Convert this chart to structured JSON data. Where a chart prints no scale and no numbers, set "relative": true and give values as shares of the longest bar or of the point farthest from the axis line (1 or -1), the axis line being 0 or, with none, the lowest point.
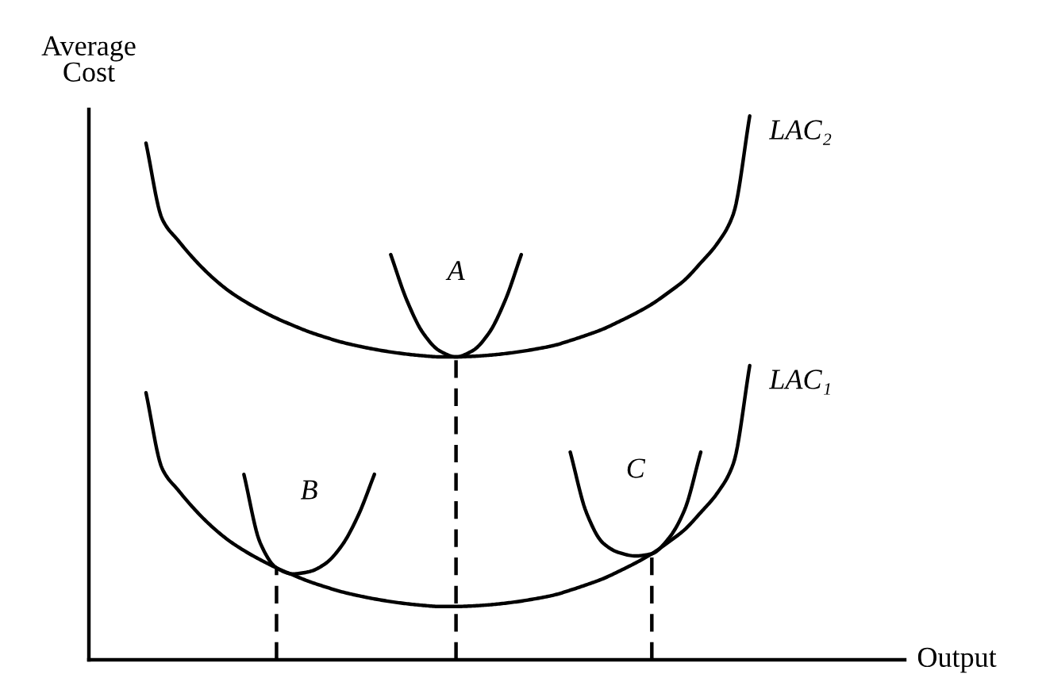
{
  "chart_data": {
    "type": "line",
    "annotations": [
      "Output"
    ],
    "ylabel": "Average\nCost",
    "relative": true,
    "marker": "none",
    "categories": [
      null,
      null,
      null,
      null,
      null,
      null,
      null,
      null,
      null,
      null,
      null,
      null,
      null,
      null,
      null,
      null,
      null,
      null,
      null,
      null,
      null,
      null,
      null,
      null,
      null,
      null,
      null,
      null,
      null,
      null,
      null,
      null,
      null,
      null,
      null,
      null,
      null,
      null
    ],
    "series": [
      {
        "name": "LAC₂",
        "color": "#000000",
        "values": [
          0.95,
          0.81,
          0.77,
          0.735,
          0.705,
          0.68,
          0.66,
          0.643,
          0.628,
          0.615,
          0.603,
          0.593,
          0.584,
          0.577,
          0.571,
          0.566,
          0.562,
          0.559,
          0.557,
          0.557,
          0.558,
          0.56,
          0.563,
          0.567,
          0.572,
          0.578,
          0.587,
          0.597,
          0.608,
          0.622,
          0.637,
          0.654,
          0.675,
          0.698,
          0.73,
          0.765,
          0.82,
          1.0
        ]
      },
      {
        "name": "LAC₁",
        "color": "#000000",
        "values": [
          0.491,
          0.351,
          0.311,
          0.276,
          0.246,
          0.221,
          0.201,
          0.184,
          0.169,
          0.156,
          0.144,
          0.134,
          0.125,
          0.118,
          0.112,
          0.107,
          0.103,
          0.1,
          0.098,
          0.098,
          0.099,
          0.101,
          0.104,
          0.108,
          0.113,
          0.119,
          0.128,
          0.138,
          0.149,
          0.163,
          0.178,
          0.195,
          0.216,
          0.239,
          0.271,
          0.306,
          0.361,
          0.541
        ]
      },
      {
        "name": "A",
        "color": "#000000",
        "values": [
          null,
          null,
          null,
          null,
          null,
          null,
          null,
          null,
          null,
          null,
          null,
          null,
          null,
          null,
          null,
          0.745,
          0.66,
          0.6,
          0.568,
          0.557,
          0.568,
          0.6,
          0.66,
          0.745,
          null,
          null,
          null,
          null,
          null,
          null,
          null,
          null,
          null,
          null,
          null,
          null,
          null,
          null
        ]
      },
      {
        "name": "B",
        "color": "#000000",
        "values": [
          null,
          null,
          null,
          null,
          null,
          null,
          0.341,
          0.215,
          0.169,
          0.158,
          0.162,
          0.177,
          0.21,
          0.265,
          0.341,
          null,
          null,
          null,
          null,
          null,
          null,
          null,
          null,
          null,
          null,
          null,
          null,
          null,
          null,
          null,
          null,
          null,
          null,
          null,
          null,
          null,
          null,
          null
        ]
      },
      {
        "name": "C",
        "color": "#000000",
        "values": [
          null,
          null,
          null,
          null,
          null,
          null,
          null,
          null,
          null,
          null,
          null,
          null,
          null,
          null,
          null,
          null,
          null,
          null,
          null,
          null,
          null,
          null,
          null,
          null,
          null,
          null,
          0.382,
          0.27,
          0.215,
          0.197,
          0.191,
          0.195,
          0.222,
          0.275,
          0.382,
          null,
          null,
          null
        ]
      }
    ]
  }
}
